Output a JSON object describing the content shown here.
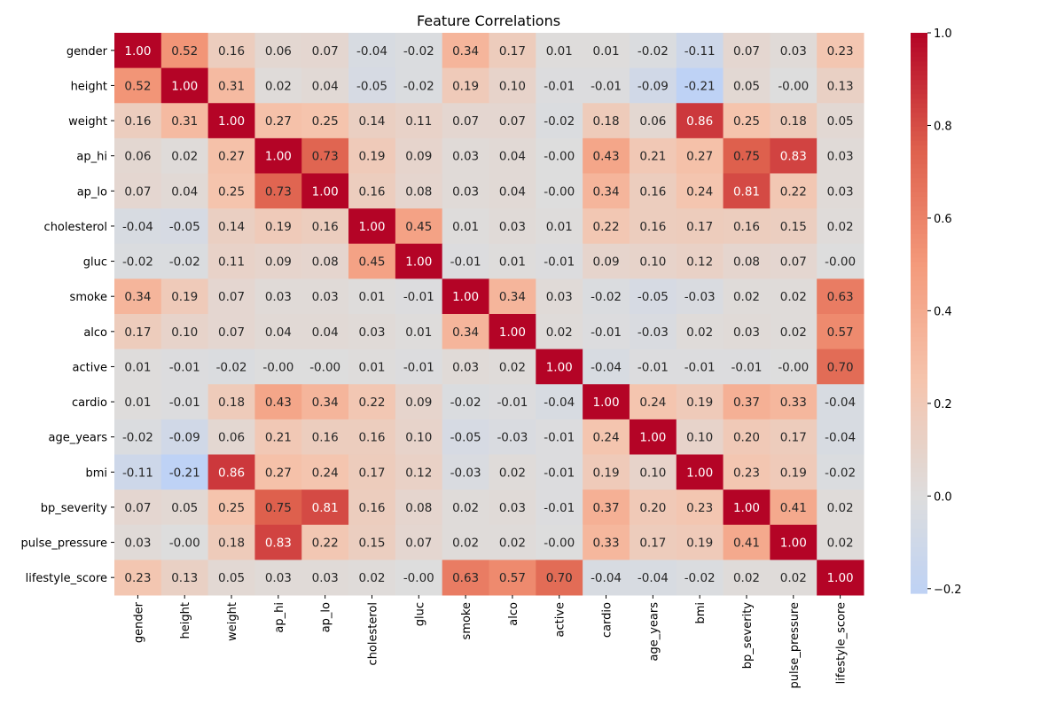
{
  "chart_data": {
    "type": "heatmap",
    "title": "Feature Correlations",
    "colormap": "coolwarm",
    "center": 0,
    "colorbar": {
      "range": [
        -0.21,
        1.0
      ],
      "ticks": [
        -0.2,
        0.0,
        0.2,
        0.4,
        0.6,
        0.8,
        1.0
      ]
    },
    "labels": [
      "gender",
      "height",
      "weight",
      "ap_hi",
      "ap_lo",
      "cholesterol",
      "gluc",
      "smoke",
      "alco",
      "active",
      "cardio",
      "age_years",
      "bmi",
      "bp_severity",
      "pulse_pressure",
      "lifestyle_score"
    ],
    "values": [
      [
        1.0,
        0.52,
        0.16,
        0.06,
        0.07,
        -0.04,
        -0.02,
        0.34,
        0.17,
        0.01,
        0.01,
        -0.02,
        -0.11,
        0.07,
        0.03,
        0.23
      ],
      [
        0.52,
        1.0,
        0.31,
        0.02,
        0.04,
        -0.05,
        -0.02,
        0.19,
        0.1,
        -0.01,
        -0.01,
        -0.09,
        -0.21,
        0.05,
        -0.0,
        0.13
      ],
      [
        0.16,
        0.31,
        1.0,
        0.27,
        0.25,
        0.14,
        0.11,
        0.07,
        0.07,
        -0.02,
        0.18,
        0.06,
        0.86,
        0.25,
        0.18,
        0.05
      ],
      [
        0.06,
        0.02,
        0.27,
        1.0,
        0.73,
        0.19,
        0.09,
        0.03,
        0.04,
        -0.0,
        0.43,
        0.21,
        0.27,
        0.75,
        0.83,
        0.03
      ],
      [
        0.07,
        0.04,
        0.25,
        0.73,
        1.0,
        0.16,
        0.08,
        0.03,
        0.04,
        -0.0,
        0.34,
        0.16,
        0.24,
        0.81,
        0.22,
        0.03
      ],
      [
        -0.04,
        -0.05,
        0.14,
        0.19,
        0.16,
        1.0,
        0.45,
        0.01,
        0.03,
        0.01,
        0.22,
        0.16,
        0.17,
        0.16,
        0.15,
        0.02
      ],
      [
        -0.02,
        -0.02,
        0.11,
        0.09,
        0.08,
        0.45,
        1.0,
        -0.01,
        0.01,
        -0.01,
        0.09,
        0.1,
        0.12,
        0.08,
        0.07,
        -0.0
      ],
      [
        0.34,
        0.19,
        0.07,
        0.03,
        0.03,
        0.01,
        -0.01,
        1.0,
        0.34,
        0.03,
        -0.02,
        -0.05,
        -0.03,
        0.02,
        0.02,
        0.63
      ],
      [
        0.17,
        0.1,
        0.07,
        0.04,
        0.04,
        0.03,
        0.01,
        0.34,
        1.0,
        0.02,
        -0.01,
        -0.03,
        0.02,
        0.03,
        0.02,
        0.57
      ],
      [
        0.01,
        -0.01,
        -0.02,
        -0.0,
        -0.0,
        0.01,
        -0.01,
        0.03,
        0.02,
        1.0,
        -0.04,
        -0.01,
        -0.01,
        -0.01,
        -0.0,
        0.7
      ],
      [
        0.01,
        -0.01,
        0.18,
        0.43,
        0.34,
        0.22,
        0.09,
        -0.02,
        -0.01,
        -0.04,
        1.0,
        0.24,
        0.19,
        0.37,
        0.33,
        -0.04
      ],
      [
        -0.02,
        -0.09,
        0.06,
        0.21,
        0.16,
        0.16,
        0.1,
        -0.05,
        -0.03,
        -0.01,
        0.24,
        1.0,
        0.1,
        0.2,
        0.17,
        -0.04
      ],
      [
        -0.11,
        -0.21,
        0.86,
        0.27,
        0.24,
        0.17,
        0.12,
        -0.03,
        0.02,
        -0.01,
        0.19,
        0.1,
        1.0,
        0.23,
        0.19,
        -0.02
      ],
      [
        0.07,
        0.05,
        0.25,
        0.75,
        0.81,
        0.16,
        0.08,
        0.02,
        0.03,
        -0.01,
        0.37,
        0.2,
        0.23,
        1.0,
        0.41,
        0.02
      ],
      [
        0.03,
        -0.0,
        0.18,
        0.83,
        0.22,
        0.15,
        0.07,
        0.02,
        0.02,
        -0.0,
        0.33,
        0.17,
        0.19,
        0.41,
        1.0,
        0.02
      ],
      [
        0.23,
        0.13,
        0.05,
        0.03,
        0.03,
        0.02,
        -0.0,
        0.63,
        0.57,
        0.7,
        -0.04,
        -0.04,
        -0.02,
        0.02,
        0.02,
        1.0
      ]
    ]
  }
}
